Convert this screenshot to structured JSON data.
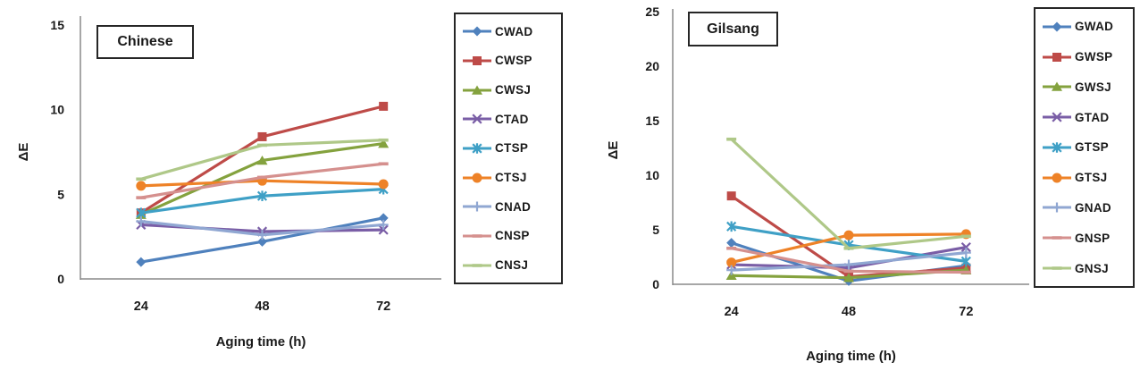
{
  "chart_data": [
    {
      "type": "line",
      "title": "Chinese",
      "ylabel": "ΔE",
      "xlabel": "Aging time (h)",
      "categories": [
        "24",
        "48",
        "72"
      ],
      "ylim": [
        0,
        15
      ],
      "yticks": [
        0,
        5,
        10,
        15
      ],
      "grid": false,
      "legend_position": "right",
      "series": [
        {
          "name": "CWAD",
          "marker": "diamond",
          "color": "#4F81BD",
          "values": [
            1.0,
            2.2,
            3.6
          ]
        },
        {
          "name": "CWSP",
          "marker": "square",
          "color": "#BE4B48",
          "values": [
            3.9,
            8.4,
            10.2
          ]
        },
        {
          "name": "CWSJ",
          "marker": "triangle",
          "color": "#84A23E",
          "values": [
            3.8,
            7.0,
            8.0
          ]
        },
        {
          "name": "CTAD",
          "marker": "x",
          "color": "#7A5EA6",
          "values": [
            3.2,
            2.8,
            2.9
          ]
        },
        {
          "name": "CTSP",
          "marker": "asterisk",
          "color": "#3FA0C6",
          "values": [
            3.9,
            4.9,
            5.3
          ]
        },
        {
          "name": "CTSJ",
          "marker": "circle",
          "color": "#EE8227",
          "values": [
            5.5,
            5.8,
            5.6
          ]
        },
        {
          "name": "CNAD",
          "marker": "plus",
          "color": "#90A7D2",
          "values": [
            3.4,
            2.6,
            3.2
          ]
        },
        {
          "name": "CNSP",
          "marker": "dash",
          "color": "#D5908E",
          "values": [
            4.8,
            6.0,
            6.8
          ]
        },
        {
          "name": "CNSJ",
          "marker": "dash",
          "color": "#AFC888",
          "values": [
            5.9,
            7.9,
            8.2
          ]
        }
      ]
    },
    {
      "type": "line",
      "title": "Gilsang",
      "ylabel": "ΔE",
      "xlabel": "Aging time (h)",
      "categories": [
        "24",
        "48",
        "72"
      ],
      "ylim": [
        0,
        25
      ],
      "yticks": [
        0,
        5,
        10,
        15,
        20,
        25
      ],
      "grid": false,
      "legend_position": "right",
      "series": [
        {
          "name": "GWAD",
          "marker": "diamond",
          "color": "#4F81BD",
          "values": [
            3.8,
            0.3,
            1.7
          ]
        },
        {
          "name": "GWSP",
          "marker": "square",
          "color": "#BE4B48",
          "values": [
            8.1,
            0.7,
            1.5
          ]
        },
        {
          "name": "GWSJ",
          "marker": "triangle",
          "color": "#84A23E",
          "values": [
            0.8,
            0.6,
            1.3
          ]
        },
        {
          "name": "GTAD",
          "marker": "x",
          "color": "#7A5EA6",
          "values": [
            1.8,
            1.5,
            3.4
          ]
        },
        {
          "name": "GTSP",
          "marker": "asterisk",
          "color": "#3FA0C6",
          "values": [
            5.3,
            3.6,
            2.1
          ]
        },
        {
          "name": "GTSJ",
          "marker": "circle",
          "color": "#EE8227",
          "values": [
            2.0,
            4.5,
            4.6
          ]
        },
        {
          "name": "GNAD",
          "marker": "plus",
          "color": "#90A7D2",
          "values": [
            1.3,
            1.8,
            2.9
          ]
        },
        {
          "name": "GNSP",
          "marker": "dash",
          "color": "#D5908E",
          "values": [
            3.3,
            1.2,
            1.1
          ]
        },
        {
          "name": "GNSJ",
          "marker": "dash",
          "color": "#AFC888",
          "values": [
            13.3,
            3.3,
            4.4
          ]
        }
      ]
    }
  ]
}
